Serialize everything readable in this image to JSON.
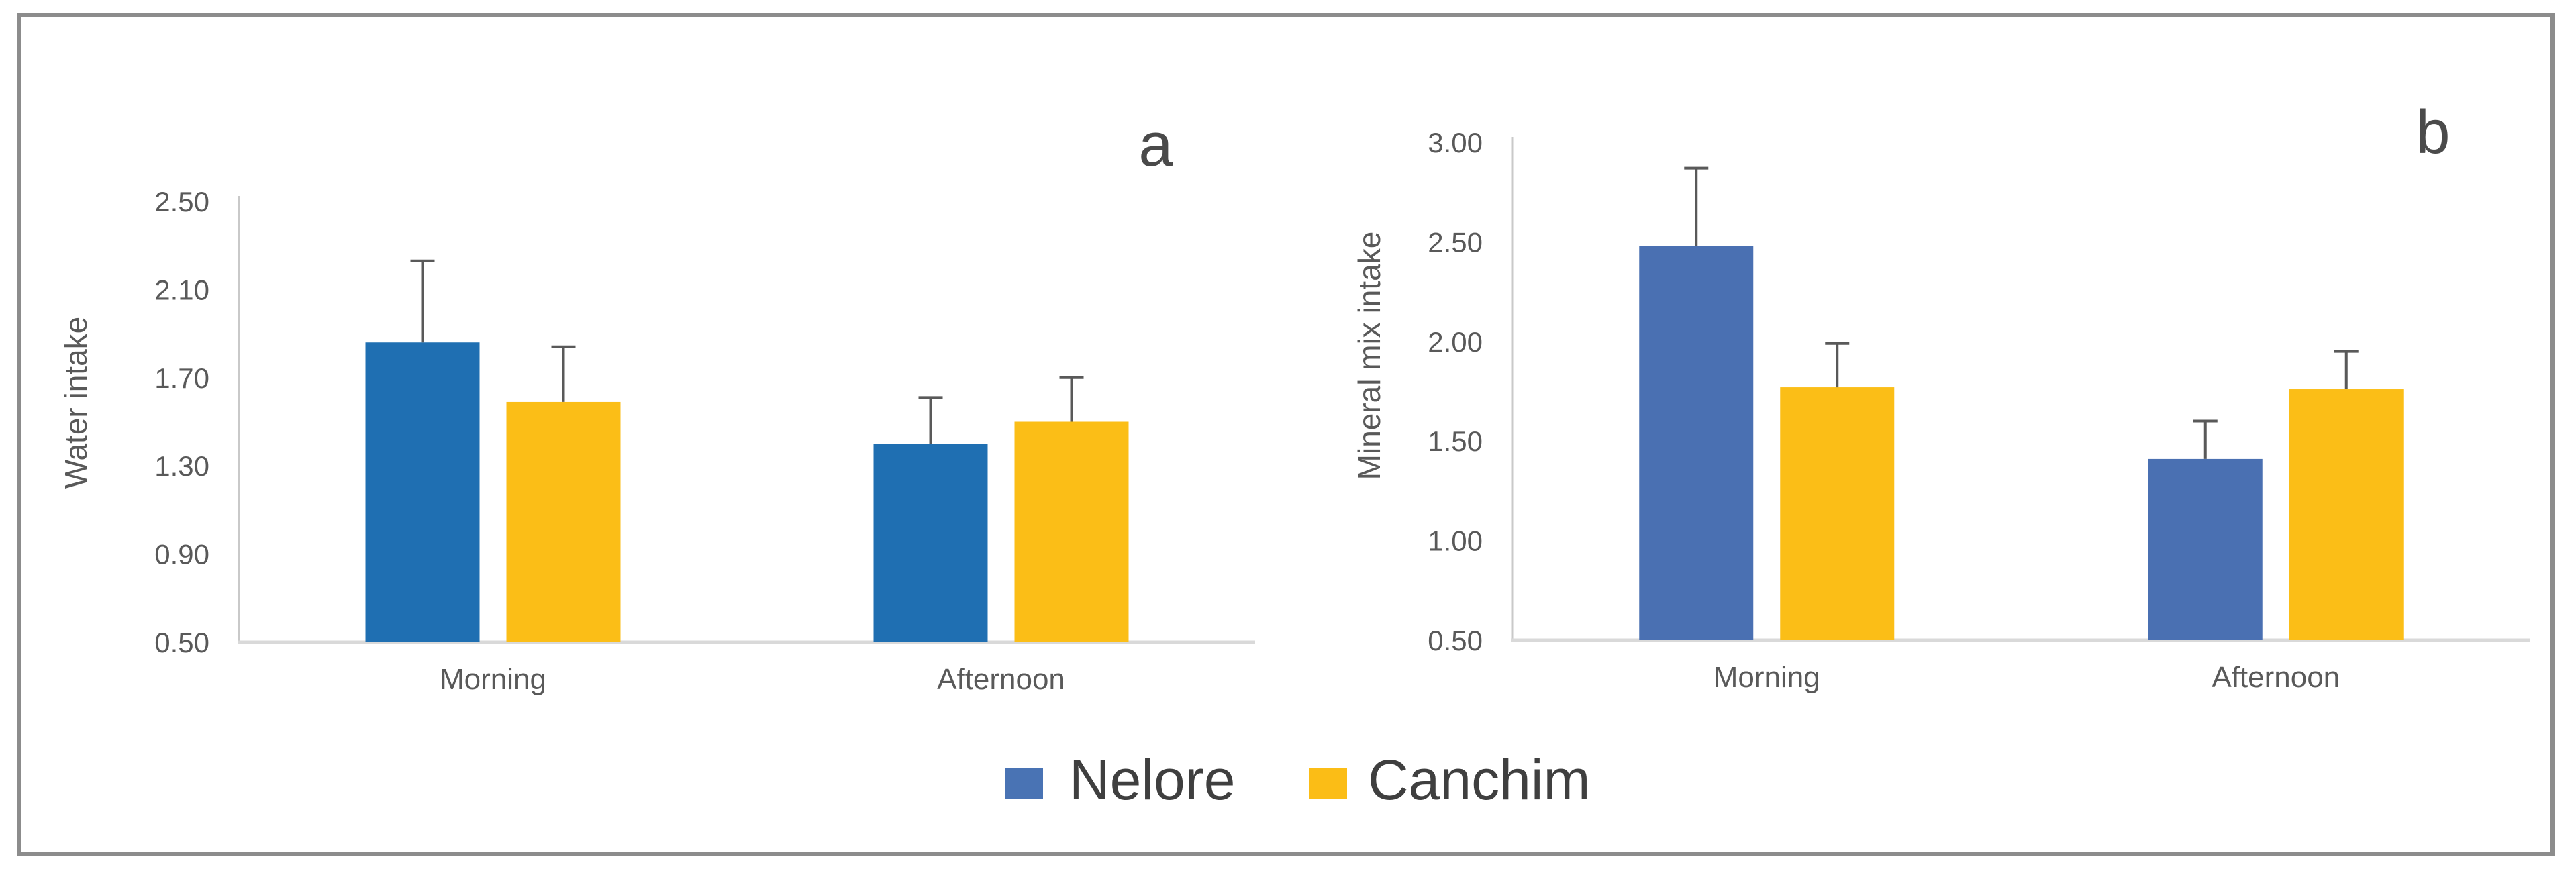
{
  "figure": {
    "background": "#FFFFFF",
    "frame_color": "#8C8C8C",
    "panel_letters": [
      "a",
      "b"
    ],
    "panel_letter_color": "#4A4A4A",
    "legend": {
      "position": "bottom-center",
      "text_color": "#3F3F3F",
      "items": [
        {
          "label": "Nelore",
          "color": "#4973B4"
        },
        {
          "label": "Canchim",
          "color": "#FBBD16"
        }
      ]
    }
  },
  "chart_data": [
    {
      "type": "bar",
      "panel": "a",
      "title": "",
      "xlabel": "",
      "ylabel": "Water intake",
      "categories": [
        "Morning",
        "Afternoon"
      ],
      "series": [
        {
          "name": "Nelore",
          "color": "#1F6FB2",
          "values": [
            1.86,
            1.4
          ],
          "errors_plus": [
            0.37,
            0.21
          ]
        },
        {
          "name": "Canchim",
          "color": "#FBBE17",
          "values": [
            1.59,
            1.5
          ],
          "errors_plus": [
            0.25,
            0.2
          ]
        }
      ],
      "ylim": [
        0.5,
        2.5
      ],
      "yticks": [
        "2.50",
        "2.10",
        "1.70",
        "1.30",
        "0.90",
        "0.50"
      ],
      "grid": false,
      "legend_position": "shared-bottom",
      "error_bar_color": "#595959",
      "axis_color": "#C9C9C9",
      "baseline_color": "#D9D9D9",
      "tick_text_color": "#595959"
    },
    {
      "type": "bar",
      "panel": "b",
      "title": "",
      "xlabel": "",
      "ylabel": "Mineral mix intake",
      "categories": [
        "Morning",
        "Afternoon"
      ],
      "series": [
        {
          "name": "Nelore",
          "color": "#4A70B2",
          "values": [
            2.48,
            1.41
          ],
          "errors_plus": [
            0.39,
            0.19
          ]
        },
        {
          "name": "Canchim",
          "color": "#FBBE17",
          "values": [
            1.77,
            1.76
          ],
          "errors_plus": [
            0.22,
            0.19
          ]
        }
      ],
      "ylim": [
        0.5,
        3.0
      ],
      "yticks": [
        "3.00",
        "2.50",
        "2.00",
        "1.50",
        "1.00",
        "0.50"
      ],
      "grid": false,
      "legend_position": "shared-bottom",
      "error_bar_color": "#595959",
      "axis_color": "#C9C9C9",
      "baseline_color": "#D9D9D9",
      "tick_text_color": "#595959"
    }
  ]
}
